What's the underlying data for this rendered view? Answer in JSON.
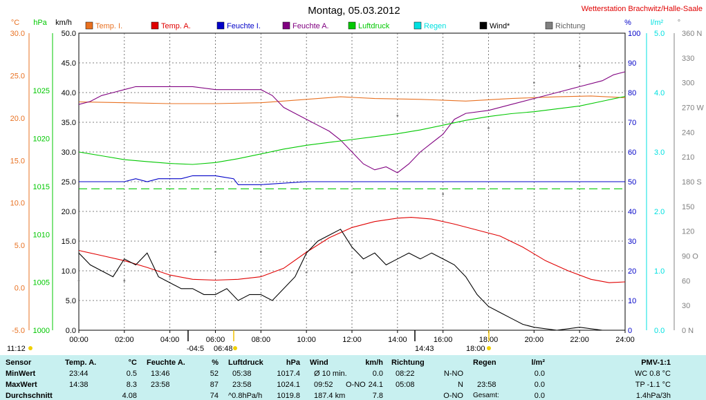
{
  "header": {
    "title": "Montag, 05.03.2012",
    "station": "Wetterstation Brachwitz/Halle-Saale"
  },
  "colors": {
    "temp_i": "#e87020",
    "temp_a": "#e00000",
    "feuchte_i": "#0000c8",
    "feuchte_a": "#800080",
    "luftdruck": "#00c800",
    "regen": "#00e0e0",
    "wind": "#000000",
    "richtung": "#808080",
    "ref_line": "#00c800",
    "table_bg": "#c8f0f0"
  },
  "chart_data": {
    "type": "line",
    "title": "Montag, 05.03.2012",
    "legend": [
      "Temp. I.",
      "Temp. A.",
      "Feuchte I.",
      "Feuchte A.",
      "Luftdruck",
      "Regen",
      "Wind*",
      "Richtung"
    ],
    "x_ticks": [
      "00:00",
      "02:00",
      "04:00",
      "06:00",
      "08:00",
      "10:00",
      "12:00",
      "14:00",
      "16:00",
      "18:00",
      "20:00",
      "22:00",
      "24:00"
    ],
    "xlim": [
      0,
      24
    ],
    "axes": {
      "temp_c": {
        "unit": "°C",
        "ticks": [
          "30.0",
          "25.0",
          "20.0",
          "15.0",
          "10.0",
          "5.0",
          "0.0",
          "-5.0"
        ],
        "ylim": [
          -5,
          30
        ]
      },
      "hpa": {
        "unit": "hPa",
        "ticks": [
          "1025",
          "1020",
          "1015",
          "1010",
          "1005",
          "1000"
        ],
        "ylim": [
          1000,
          1031
        ]
      },
      "kmh": {
        "unit": "km/h",
        "ticks": [
          "50.0",
          "45.0",
          "40.0",
          "35.0",
          "30.0",
          "25.0",
          "20.0",
          "15.0",
          "10.0",
          "5.0",
          "0.0"
        ],
        "ylim": [
          0,
          50
        ]
      },
      "pct": {
        "unit": "%",
        "ticks": [
          "100",
          "90",
          "80",
          "70",
          "60",
          "50",
          "40",
          "30",
          "20",
          "10",
          "0"
        ],
        "ylim": [
          0,
          100
        ]
      },
      "lm2": {
        "unit": "l/m²",
        "ticks": [
          "5.0",
          "4.0",
          "3.0",
          "2.0",
          "1.0",
          "0.0"
        ],
        "ylim": [
          0,
          5
        ]
      },
      "deg": {
        "unit": "°",
        "ticks": [
          "360 N",
          "330",
          "300",
          "270 W",
          "240",
          "210",
          "180 S",
          "150",
          "120",
          "90 O",
          "60",
          "30",
          "0 N"
        ],
        "ylim": [
          0,
          360
        ]
      }
    },
    "time_markers": {
      "sunrise": "11:12",
      "dawn": "-04:5",
      "sun_up": "06:48",
      "noon": "14:43",
      "sun_down": "18:00"
    },
    "series": [
      {
        "name": "Temp. I.",
        "axis": "temp_c",
        "x": [
          0,
          2,
          4,
          6,
          8,
          10,
          11.5,
          13,
          15,
          17,
          19,
          21,
          22.5,
          24
        ],
        "y": [
          21.9,
          21.8,
          21.7,
          21.7,
          21.8,
          22.2,
          22.5,
          22.3,
          22.2,
          22.0,
          22.3,
          22.5,
          22.6,
          22.4
        ]
      },
      {
        "name": "Temp. A.",
        "axis": "temp_c",
        "x": [
          0,
          1,
          2,
          3,
          4,
          5,
          6,
          7,
          8,
          9,
          10,
          11,
          12,
          13,
          14,
          14.6,
          15.5,
          16.5,
          17.5,
          18.5,
          19.5,
          20.5,
          21.5,
          22.5,
          23.3,
          24
        ],
        "y": [
          4.4,
          3.8,
          3.2,
          2.4,
          1.5,
          1.0,
          0.9,
          1.0,
          1.3,
          2.3,
          4.2,
          5.9,
          7.1,
          7.8,
          8.2,
          8.3,
          8.1,
          7.5,
          6.8,
          6.1,
          4.8,
          3.2,
          2.0,
          1.0,
          0.6,
          0.7
        ]
      },
      {
        "name": "Feuchte I.",
        "axis": "pct",
        "x": [
          0,
          2,
          2.5,
          3,
          3.5,
          4,
          4.5,
          5,
          6,
          6.8,
          7.0,
          8,
          10,
          12,
          14,
          16,
          18,
          20,
          22,
          24
        ],
        "y": [
          50,
          50,
          51,
          50,
          51,
          51,
          51,
          52,
          52,
          51,
          49,
          49,
          50,
          50,
          50,
          50,
          50,
          50,
          50,
          50
        ]
      },
      {
        "name": "Feuchte A.",
        "axis": "pct",
        "x": [
          0,
          0.5,
          1,
          1.5,
          2,
          2.5,
          3,
          4,
          5,
          6,
          7,
          8,
          8.5,
          9,
          9.5,
          10,
          10.5,
          11,
          11.5,
          12,
          12.5,
          13,
          13.5,
          14,
          14.5,
          15,
          15.5,
          16,
          16.5,
          17,
          18,
          19,
          20,
          21,
          22,
          23,
          23.5,
          24
        ],
        "y": [
          76,
          77,
          79,
          80,
          81,
          82,
          82,
          82,
          82,
          81,
          81,
          81,
          79,
          75,
          73,
          71,
          69,
          67,
          64,
          60,
          56,
          54,
          55,
          53,
          56,
          60,
          63,
          66,
          71,
          73,
          74,
          76,
          78,
          80,
          82,
          84,
          86,
          87
        ]
      },
      {
        "name": "Luftdruck",
        "axis": "hpa",
        "x": [
          0,
          1,
          2,
          3,
          4,
          5,
          6,
          7,
          8,
          9,
          10,
          11,
          12,
          13,
          14,
          15,
          16,
          17,
          18,
          19,
          20,
          21,
          22,
          23,
          24
        ],
        "y": [
          1018.6,
          1018.2,
          1017.8,
          1017.6,
          1017.4,
          1017.3,
          1017.5,
          1017.9,
          1018.4,
          1018.9,
          1019.3,
          1019.6,
          1019.9,
          1020.2,
          1020.5,
          1020.9,
          1021.4,
          1021.9,
          1022.3,
          1022.6,
          1022.8,
          1023.1,
          1023.4,
          1023.9,
          1024.4
        ]
      },
      {
        "name": "Wind*",
        "axis": "kmh",
        "x": [
          0,
          0.5,
          1,
          1.5,
          2,
          2.5,
          3,
          3.5,
          4,
          4.5,
          5,
          5.5,
          6,
          6.5,
          7,
          7.5,
          8,
          8.5,
          9,
          9.5,
          10,
          10.5,
          11,
          11.5,
          12,
          12.5,
          13,
          13.5,
          14,
          14.5,
          15,
          15.5,
          16,
          16.5,
          17,
          17.5,
          18,
          18.5,
          19,
          19.5,
          20,
          21,
          22,
          23,
          24
        ],
        "y": [
          13,
          11,
          10,
          9,
          12,
          11,
          13,
          9,
          8,
          7,
          7,
          6,
          6,
          7,
          5,
          6,
          6,
          5,
          7,
          9,
          13,
          15,
          16,
          17,
          14,
          12,
          13,
          11,
          12,
          13,
          12,
          13,
          12,
          11,
          9,
          6,
          4,
          3,
          2,
          1,
          0.5,
          0,
          0.5,
          0,
          0
        ]
      },
      {
        "name": "Richtung",
        "axis": "deg",
        "x": [
          0,
          2,
          4,
          6,
          8,
          10,
          12,
          14,
          16,
          18,
          20,
          22,
          24
        ],
        "y": [
          60,
          60,
          65,
          95,
          95,
          70,
          70,
          260,
          165,
          245,
          300,
          320,
          290
        ]
      }
    ],
    "wind_gust_ref_kmh": 23.8,
    "grid": true
  },
  "table": {
    "labels": [
      "Sensor",
      "MinWert",
      "MaxWert",
      "Durchschnitt"
    ],
    "temp": {
      "header": "Temp. A.",
      "unit": "°C",
      "min_time": "23:44",
      "min": "0.5",
      "max_time": "14:38",
      "max": "8.3",
      "avg": "4.08"
    },
    "feuchte": {
      "header": "Feuchte A.",
      "unit": "%",
      "min_time": "13:46",
      "min": "52",
      "max_time": "23:58",
      "max": "87",
      "avg": "74"
    },
    "luftdruck": {
      "header": "Luftdruck",
      "unit": "hPa",
      "min_time": "05:38",
      "min": "1017.4",
      "max_time": "23:58",
      "max": "1024.1",
      "avg_note": "^0.8hPa/h",
      "avg": "1019.8"
    },
    "wind": {
      "header": "Wind",
      "unit": "km/h",
      "min_label": "Ø 10 min.",
      "min": "0.0",
      "max_time": "09:52",
      "max_dir": "O-NO",
      "max": "24.1",
      "avg_label": "187.4 km",
      "avg": "7.8"
    },
    "richtung": {
      "header": "Richtung",
      "min_time": "08:22",
      "min": "N-NO",
      "max_time": "05:08",
      "max": "N",
      "avg": "O-NO"
    },
    "regen": {
      "header": "Regen",
      "unit": "l/m²",
      "min": "0.0",
      "max_time": "23:58",
      "max": "0.0",
      "avg_label": "Gesamt:",
      "avg": "0.0"
    },
    "pmv": {
      "header": "PMV-1:1",
      "wc": "WC 0.8 °C",
      "tp": "TP -1.1 °C",
      "rate": "1.4hPa/3h"
    }
  }
}
